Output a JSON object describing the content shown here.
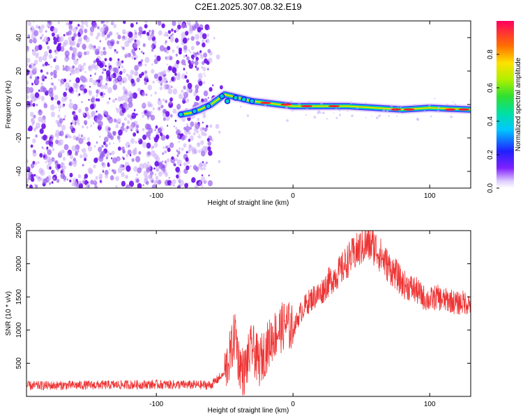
{
  "chart_data": [
    {
      "type": "heatmap",
      "title": "C2E1.2025.307.08.32.E19",
      "xlabel": "Height of straight line (km)",
      "ylabel": "Frequency (Hz)",
      "xlim": [
        -195,
        130
      ],
      "ylim": [
        -50,
        50
      ],
      "xticks": [
        -100,
        0,
        100
      ],
      "xtick_labels": [
        "-100",
        "0",
        "100"
      ],
      "yticks": [
        40,
        20,
        0,
        -20,
        -40
      ],
      "ytick_labels": [
        "40",
        "20",
        "0",
        "-20",
        "-40"
      ],
      "noise_region_x": [
        -195,
        -60
      ],
      "ridge": [
        {
          "x": -82,
          "f": -6
        },
        {
          "x": -75,
          "f": -5
        },
        {
          "x": -68,
          "f": -3
        },
        {
          "x": -60,
          "f": 0
        },
        {
          "x": -55,
          "f": 3
        },
        {
          "x": -50,
          "f": 6
        },
        {
          "x": -45,
          "f": 5
        },
        {
          "x": -40,
          "f": 4
        },
        {
          "x": -35,
          "f": 3
        },
        {
          "x": -30,
          "f": 2
        },
        {
          "x": -20,
          "f": 1
        },
        {
          "x": -10,
          "f": 0
        },
        {
          "x": 0,
          "f": -1
        },
        {
          "x": 20,
          "f": -1
        },
        {
          "x": 40,
          "f": -1
        },
        {
          "x": 60,
          "f": -2
        },
        {
          "x": 80,
          "f": -3
        },
        {
          "x": 100,
          "f": -2
        },
        {
          "x": 130,
          "f": -3
        }
      ],
      "colorbar": {
        "label": "Normalized spectral amplitude",
        "range": [
          0,
          1
        ],
        "ticks": [
          "0.0",
          "0.2",
          "0.4",
          "0.6",
          "0.8"
        ],
        "tick_values": [
          0,
          0.2,
          0.4,
          0.6,
          0.8
        ]
      }
    },
    {
      "type": "line",
      "xlabel": "Height of straight line (km)",
      "ylabel": "SNR (10 * v/v)",
      "xlim": [
        -195,
        130
      ],
      "ylim": [
        0,
        2500
      ],
      "xticks": [
        -100,
        0,
        100
      ],
      "xtick_labels": [
        "-100",
        "0",
        "100"
      ],
      "yticks": [
        500,
        1000,
        1500,
        2000,
        2500
      ],
      "ytick_labels": [
        "500",
        "1000",
        "1500",
        "2000",
        "2500"
      ],
      "color": "#ee3333",
      "series": [
        {
          "name": "SNR",
          "x": [
            -195,
            -150,
            -100,
            -60,
            -50,
            -45,
            -42,
            -40,
            -36,
            -30,
            -25,
            -20,
            -15,
            -10,
            -5,
            0,
            5,
            10,
            15,
            20,
            25,
            30,
            35,
            40,
            45,
            50,
            55,
            60,
            65,
            70,
            75,
            80,
            85,
            90,
            95,
            100,
            105,
            110,
            115,
            120,
            125,
            130
          ],
          "y": [
            160,
            170,
            180,
            170,
            350,
            700,
            1000,
            550,
            350,
            750,
            500,
            700,
            900,
            1000,
            1100,
            1000,
            1250,
            1400,
            1500,
            1550,
            1700,
            1800,
            1900,
            2050,
            2150,
            2250,
            2300,
            2250,
            2100,
            1950,
            1850,
            1700,
            1650,
            1600,
            1500,
            1450,
            1500,
            1450,
            1450,
            1400,
            1420,
            1400
          ]
        }
      ]
    }
  ],
  "colors": {
    "noise_dot": "#7020e0",
    "background": "#ffffff",
    "line": "#ee3333"
  }
}
